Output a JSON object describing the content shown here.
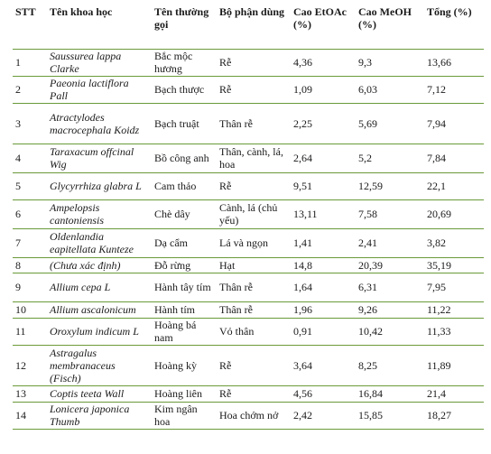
{
  "table": {
    "headers": [
      "STT",
      "Tên khoa học",
      "Tên thường gọi",
      "Bộ phận dùng",
      "Cao EtOAc (%)",
      "Cao MeOH (%)",
      "Tổng (%)"
    ],
    "rows": [
      [
        "1",
        "Saussurea lappa Clarke",
        "Bắc mộc hương",
        "Rễ",
        "4,36",
        "9,3",
        "13,66"
      ],
      [
        "2",
        "Paeonia lactiflora Pall",
        "Bạch thược",
        "Rễ",
        "1,09",
        "6,03",
        "7,12"
      ],
      [
        "3",
        "Atractylodes macrocephala Koidz",
        "Bạch truật",
        "Thân rễ",
        "2,25",
        "5,69",
        "7,94"
      ],
      [
        "4",
        "Taraxacum offcinal Wig",
        "Bồ công anh",
        "Thân, cành, lá, hoa",
        "2,64",
        "5,2",
        "7,84"
      ],
      [
        "5",
        "Glycyrrhiza glabra L",
        "Cam thảo",
        "Rễ",
        "9,51",
        "12,59",
        "22,1"
      ],
      [
        "6",
        "Ampelopsis cantoniensis",
        "Chè dây",
        "Cành, lá (chủ yếu)",
        "13,11",
        "7,58",
        "20,69"
      ],
      [
        "7",
        "Oldenlandia eapitellata Kunteze",
        "Dạ cẩm",
        "Lá và ngọn",
        "1,41",
        "2,41",
        "3,82"
      ],
      [
        "8",
        "(Chưa xác định)",
        "Đỗ rừng",
        "Hạt",
        "14,8",
        "20,39",
        "35,19"
      ],
      [
        "9",
        "Allium cepa L",
        "Hành tây tím",
        "Thân rễ",
        "1,64",
        "6,31",
        "7,95"
      ],
      [
        "10",
        "Allium ascalonicum",
        "Hành tím",
        "Thân rễ",
        "1,96",
        "9,26",
        "11,22"
      ],
      [
        "11",
        "Oroxylum indicum L",
        "Hoàng bá nam",
        "Vỏ thân",
        "0,91",
        "10,42",
        "11,33"
      ],
      [
        "12",
        "Astragalus membranaceus (Fisch)",
        "Hoàng kỳ",
        "Rễ",
        "3,64",
        "8,25",
        "11,89"
      ],
      [
        "13",
        "Coptis teeta Wall",
        "Hoàng liên",
        "Rễ",
        "4,56",
        "16,84",
        "21,4"
      ],
      [
        "14",
        "Lonicera japonica Thumb",
        "Kim ngân hoa",
        "Hoa chớm nở",
        "2,42",
        "15,85",
        "18,27"
      ]
    ]
  }
}
